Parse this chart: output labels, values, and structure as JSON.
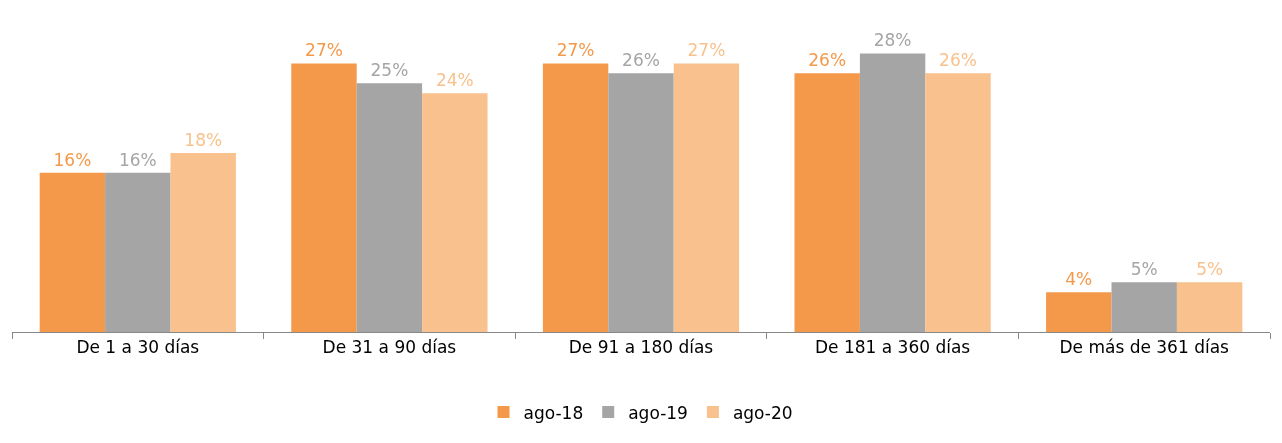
{
  "chart_data": {
    "type": "bar",
    "categories": [
      "De 1 a 30 días",
      "De 31 a 90 días",
      "De 91 a 180 días",
      "De 181 a 360 días",
      "De más de 361 días"
    ],
    "series": [
      {
        "name": "ago-18",
        "color": "#f4994a",
        "values": [
          16,
          27,
          27,
          26,
          4
        ],
        "value_labels": [
          "16%",
          "27%",
          "27%",
          "26%",
          "4%"
        ]
      },
      {
        "name": "ago-19",
        "color": "#a5a5a5",
        "values": [
          16,
          25,
          26,
          28,
          5
        ],
        "value_labels": [
          "16%",
          "25%",
          "26%",
          "28%",
          "5%"
        ]
      },
      {
        "name": "ago-20",
        "color": "#f8c18d",
        "values": [
          18,
          24,
          27,
          26,
          5
        ],
        "value_labels": [
          "18%",
          "24%",
          "27%",
          "26%",
          "5%"
        ]
      }
    ],
    "legend": "bottom"
  }
}
